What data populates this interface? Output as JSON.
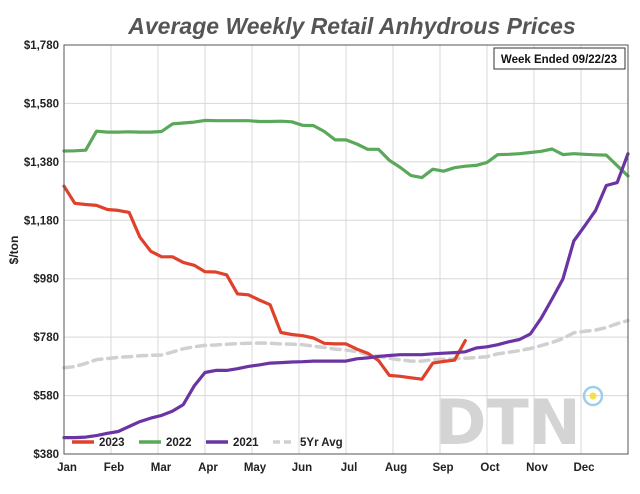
{
  "chart_data": {
    "type": "line",
    "title": "Average Weekly Retail Anhydrous Prices",
    "ylabel": "$/ton",
    "xlabel": "",
    "annotation": "Week Ended 09/22/23",
    "watermark": "DTN",
    "x_categories": [
      "Jan",
      "Feb",
      "Mar",
      "Apr",
      "May",
      "Jun",
      "Jul",
      "Aug",
      "Sep",
      "Oct",
      "Nov",
      "Dec"
    ],
    "xlim": [
      0,
      52
    ],
    "ylim": [
      380,
      1780
    ],
    "yticks": [
      380,
      580,
      780,
      980,
      1180,
      1380,
      1580,
      1780
    ],
    "ytick_labels": [
      "$380",
      "$580",
      "$780",
      "$980",
      "$1,180",
      "$1,380",
      "$1,580",
      "$1,780"
    ],
    "grid": true,
    "legend_position": "bottom-left",
    "series": [
      {
        "name": "2023",
        "color": "#e0412b",
        "dashed": false,
        "x": [
          0,
          1,
          2,
          3,
          4,
          5,
          6,
          7,
          8,
          9,
          10,
          11,
          12,
          13,
          14,
          15,
          16,
          17,
          18,
          19,
          20,
          21,
          22,
          23,
          24,
          25,
          26,
          27,
          28,
          29,
          30,
          31,
          32,
          33,
          34,
          35,
          36,
          37
        ],
        "values": [
          1297,
          1238,
          1234,
          1231,
          1217,
          1214,
          1207,
          1122,
          1074,
          1055,
          1055,
          1036,
          1026,
          1004,
          1003,
          993,
          928,
          925,
          907,
          891,
          796,
          789,
          785,
          777,
          759,
          757,
          757,
          739,
          725,
          700,
          649,
          646,
          641,
          636,
          691,
          697,
          701,
          768
        ]
      },
      {
        "name": "2022",
        "color": "#5aa85a",
        "dashed": false,
        "x": [
          0,
          1,
          2,
          3,
          4,
          5,
          6,
          7,
          8,
          9,
          10,
          11,
          12,
          13,
          14,
          15,
          16,
          17,
          18,
          19,
          20,
          21,
          22,
          23,
          24,
          25,
          26,
          27,
          28,
          29,
          30,
          31,
          32,
          33,
          34,
          35,
          36,
          37,
          38,
          39,
          40,
          41,
          42,
          43,
          44,
          45,
          46,
          47,
          48,
          49,
          50,
          51,
          52
        ],
        "values": [
          1417,
          1418,
          1420,
          1485,
          1482,
          1482,
          1483,
          1482,
          1482,
          1484,
          1510,
          1513,
          1516,
          1522,
          1521,
          1521,
          1521,
          1521,
          1518,
          1518,
          1519,
          1517,
          1505,
          1504,
          1484,
          1455,
          1455,
          1441,
          1423,
          1423,
          1385,
          1361,
          1333,
          1326,
          1355,
          1348,
          1360,
          1365,
          1368,
          1378,
          1405,
          1406,
          1408,
          1412,
          1416,
          1424,
          1405,
          1408,
          1406,
          1404,
          1403,
          1367,
          1332
        ]
      },
      {
        "name": "2021",
        "color": "#6a35a3",
        "dashed": false,
        "x": [
          0,
          1,
          2,
          3,
          4,
          5,
          6,
          7,
          8,
          9,
          10,
          11,
          12,
          13,
          14,
          15,
          16,
          17,
          18,
          19,
          20,
          21,
          22,
          23,
          24,
          25,
          26,
          27,
          28,
          29,
          30,
          31,
          32,
          33,
          34,
          35,
          36,
          37,
          38,
          39,
          40,
          41,
          42,
          43,
          44,
          45,
          46,
          47,
          48,
          49,
          50,
          51,
          52
        ],
        "values": [
          436,
          436,
          438,
          443,
          451,
          457,
          474,
          491,
          503,
          512,
          527,
          549,
          613,
          659,
          666,
          666,
          672,
          680,
          685,
          691,
          693,
          695,
          696,
          698,
          698,
          698,
          698,
          706,
          709,
          714,
          717,
          720,
          720,
          720,
          723,
          725,
          727,
          730,
          743,
          747,
          754,
          764,
          772,
          791,
          845,
          911,
          979,
          1109,
          1160,
          1213,
          1299,
          1309,
          1408
        ]
      },
      {
        "name": "5Yr Avg",
        "color": "#d0d0d0",
        "dashed": true,
        "x": [
          0,
          1,
          2,
          3,
          4,
          5,
          6,
          7,
          8,
          9,
          10,
          11,
          12,
          13,
          14,
          15,
          16,
          17,
          18,
          19,
          20,
          21,
          22,
          23,
          24,
          25,
          26,
          27,
          28,
          29,
          30,
          31,
          32,
          33,
          34,
          35,
          36,
          37,
          38,
          39,
          40,
          41,
          42,
          43,
          44,
          45,
          46,
          47,
          48,
          49,
          50,
          51,
          52
        ],
        "values": [
          675,
          679,
          690,
          703,
          707,
          711,
          713,
          716,
          718,
          719,
          729,
          740,
          747,
          752,
          753,
          756,
          758,
          759,
          760,
          759,
          757,
          756,
          754,
          749,
          745,
          739,
          736,
          731,
          720,
          714,
          708,
          702,
          698,
          698,
          703,
          704,
          706,
          708,
          710,
          713,
          723,
          728,
          734,
          741,
          751,
          762,
          775,
          795,
          800,
          804,
          813,
          826,
          837
        ]
      }
    ]
  }
}
